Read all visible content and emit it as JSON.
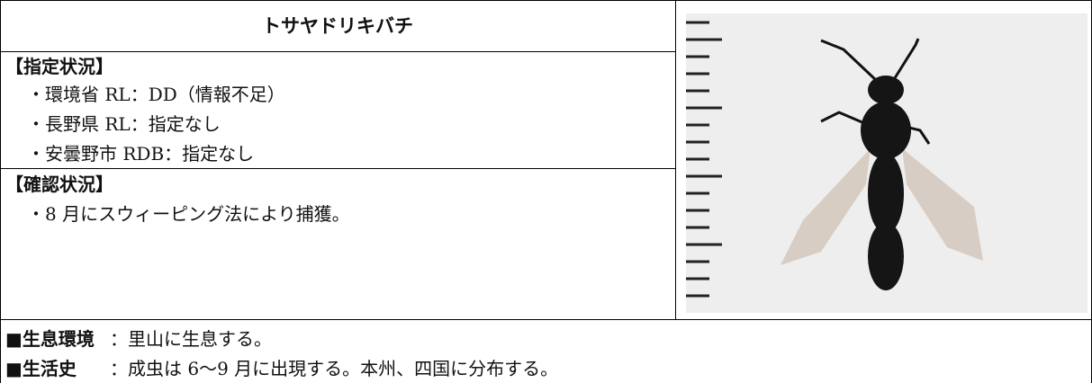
{
  "title": "トサヤドリキバチ",
  "designation": {
    "heading": "【指定状況】",
    "items": [
      "・環境省 RL：DD（情報不足）",
      "・長野県 RL：指定なし",
      "・安曇野市 RDB：指定なし"
    ]
  },
  "confirmation": {
    "heading": "【確認状況】",
    "items": [
      "・8 月にスウィーピング法により捕獲。"
    ]
  },
  "notes": [
    {
      "label": "■生息環境",
      "text": "：里山に生息する。"
    },
    {
      "label": "■生活史",
      "text": "：成虫は 6～9 月に出現する。本州、四国に分布する。"
    }
  ]
}
